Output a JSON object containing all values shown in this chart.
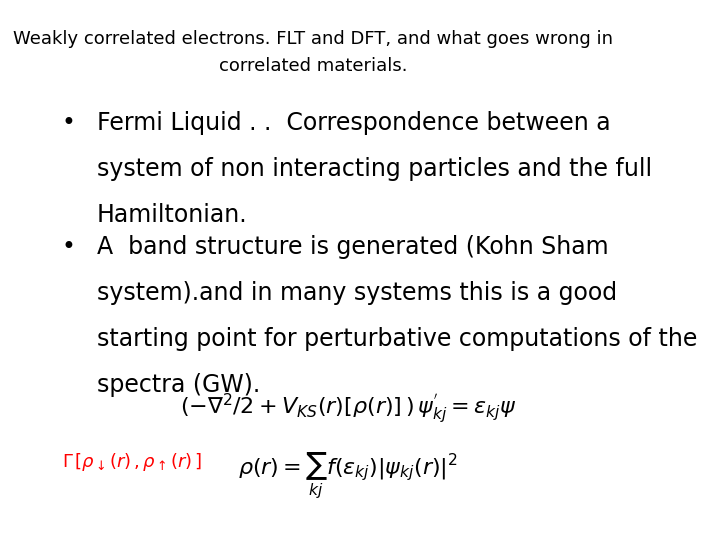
{
  "background_color": "#ffffff",
  "title_line1": "Weakly correlated electrons. FLT and DFT, and what goes wrong in",
  "title_line2": "correlated materials.",
  "bullet1_line1": "Fermi Liquid . .  Correspondence between a",
  "bullet1_line2": "system of non interacting particles and the full",
  "bullet1_line3": "Hamiltonian.",
  "bullet2_line1": "A  band structure is generated (Kohn Sham",
  "bullet2_line2": "system).and in many systems this is a good",
  "bullet2_line3": "starting point for perturbative computations of the",
  "bullet2_line4": "spectra (GW).",
  "eq1": "$(-\\nabla^2/2 + V_{KS}(r)[\\rho(r)]\\,)\\,\\psi^{'}_{kj} = \\varepsilon_{kj}\\psi$",
  "eq2": "$\\rho(r) = \\sum_{kj} f(\\varepsilon_{kj})|\\psi_{kj}(r)|^2$",
  "gamma_label": "$\\Gamma\\,[\\rho_{\\downarrow}(r)\\,,\\rho_{\\uparrow}(r)\\,]$",
  "text_color": "#000000",
  "title_fontsize": 13,
  "body_fontsize": 17,
  "eq_fontsize": 16,
  "gamma_fontsize": 13
}
